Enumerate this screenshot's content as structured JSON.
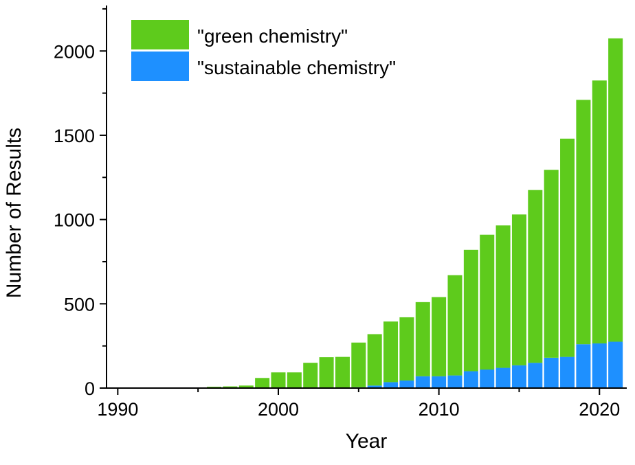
{
  "chart_data": {
    "type": "bar",
    "stacked": true,
    "title": "",
    "xlabel": "Year",
    "ylabel": "Number of Results",
    "xlim": [
      1989.3,
      2021.7
    ],
    "ylim": [
      0,
      2270
    ],
    "x_ticks": [
      1990,
      2000,
      2010,
      2020
    ],
    "y_ticks": [
      0,
      500,
      1000,
      1500,
      2000
    ],
    "grid": false,
    "legend_position": "top-left",
    "categories": [
      1990,
      1991,
      1992,
      1993,
      1994,
      1995,
      1996,
      1997,
      1998,
      1999,
      2000,
      2001,
      2002,
      2003,
      2004,
      2005,
      2006,
      2007,
      2008,
      2009,
      2010,
      2011,
      2012,
      2013,
      2014,
      2015,
      2016,
      2017,
      2018,
      2019,
      2020,
      2021
    ],
    "series": [
      {
        "name": "\"sustainable chemistry\"",
        "color": "#1e90ff",
        "values": [
          0,
          0,
          0,
          0,
          0,
          0,
          0,
          0,
          0,
          0,
          0,
          0,
          0,
          0,
          0,
          5,
          15,
          35,
          45,
          70,
          70,
          75,
          100,
          110,
          120,
          135,
          150,
          180,
          185,
          260,
          265,
          275
        ]
      },
      {
        "name": "\"green chemistry\"",
        "color": "#5ecb1c",
        "values": [
          0,
          0,
          0,
          0,
          0,
          3,
          8,
          10,
          15,
          60,
          93,
          93,
          150,
          183,
          185,
          265,
          305,
          360,
          375,
          440,
          470,
          595,
          720,
          800,
          845,
          895,
          1025,
          1115,
          1295,
          1450,
          1560,
          1800
        ]
      }
    ],
    "totals": [
      0,
      0,
      0,
      0,
      0,
      3,
      8,
      10,
      15,
      60,
      93,
      93,
      150,
      183,
      185,
      270,
      320,
      395,
      420,
      510,
      540,
      670,
      820,
      910,
      965,
      1030,
      1175,
      1295,
      1480,
      1710,
      1825,
      2075
    ]
  }
}
